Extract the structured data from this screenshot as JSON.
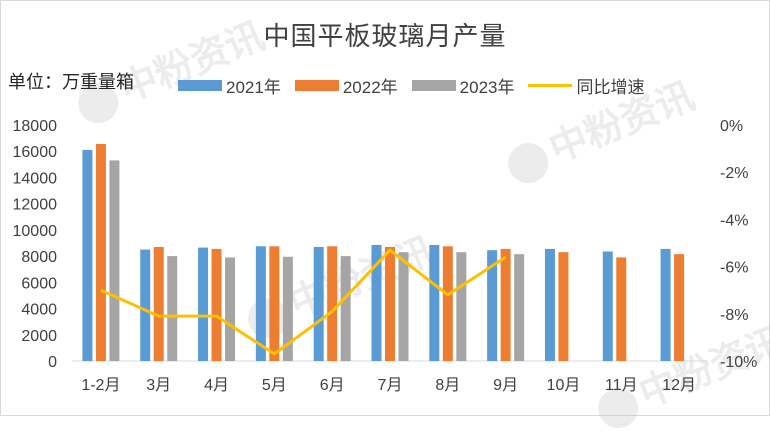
{
  "title": "中国平板玻璃月产量",
  "unit_label": "单位：万重量箱",
  "watermark_text": "中粉资讯",
  "colors": {
    "s2021": "#5B9BD5",
    "s2022": "#ED7D31",
    "s2023": "#A5A5A5",
    "yoy": "#FFC000",
    "axis": "#d9d9d9",
    "text": "#404040"
  },
  "chart_data": {
    "type": "bar",
    "title": "中国平板玻璃月产量",
    "ylabel": "单位：万重量箱",
    "categories": [
      "1-2月",
      "3月",
      "4月",
      "5月",
      "6月",
      "7月",
      "8月",
      "9月",
      "10月",
      "11月",
      "12月"
    ],
    "series": [
      {
        "name": "2021年",
        "type": "bar",
        "axis": "left",
        "color": "#5B9BD5",
        "values": [
          16100,
          8500,
          8650,
          8750,
          8700,
          8850,
          8850,
          8450,
          8550,
          8350,
          8550
        ]
      },
      {
        "name": "2022年",
        "type": "bar",
        "axis": "left",
        "color": "#ED7D31",
        "values": [
          16550,
          8700,
          8550,
          8750,
          8750,
          8700,
          8750,
          8550,
          8300,
          7900,
          8150
        ]
      },
      {
        "name": "2023年",
        "type": "bar",
        "axis": "left",
        "color": "#A5A5A5",
        "values": [
          15300,
          8000,
          7900,
          7950,
          8000,
          8300,
          8300,
          8150,
          null,
          null,
          null
        ]
      },
      {
        "name": "同比增速",
        "type": "line",
        "axis": "right",
        "color": "#FFC000",
        "values": [
          -7.0,
          -8.1,
          -8.1,
          -9.7,
          -7.9,
          -5.3,
          -7.2,
          -5.6,
          null,
          null,
          null
        ]
      }
    ],
    "ylim": [
      0,
      18000
    ],
    "yticks": [
      "0",
      "2000",
      "4000",
      "6000",
      "8000",
      "10000",
      "12000",
      "14000",
      "16000",
      "18000"
    ],
    "y2lim": [
      -10,
      0
    ],
    "y2ticks": [
      "0%",
      "-2%",
      "-4%",
      "-6%",
      "-8%",
      "-10%"
    ],
    "grid": false,
    "legend": "top"
  }
}
